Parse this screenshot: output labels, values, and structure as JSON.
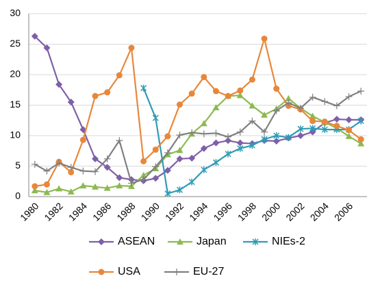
{
  "chart_data": {
    "type": "line",
    "categories": [
      "1980",
      null,
      "1982",
      null,
      "1984",
      null,
      "1986",
      null,
      "1988",
      null,
      "1990",
      null,
      "1992",
      null,
      "1994",
      null,
      "1996",
      null,
      "1998",
      null,
      "2000",
      null,
      "2002",
      null,
      "2004",
      null,
      "2006",
      null
    ],
    "series": [
      {
        "name": "ASEAN",
        "color": "#7f5fa8",
        "marker": "diamond",
        "values": [
          26.3,
          24.4,
          18.4,
          15.5,
          11.0,
          6.2,
          4.8,
          3.1,
          2.8,
          2.6,
          3.0,
          4.3,
          6.2,
          6.3,
          7.9,
          8.8,
          9.2,
          8.8,
          8.7,
          9.2,
          9.1,
          9.6,
          10.0,
          10.6,
          12.1,
          12.7,
          12.6,
          12.6
        ]
      },
      {
        "name": "Japan",
        "color": "#8cba50",
        "marker": "triangle",
        "values": [
          1.0,
          0.7,
          1.3,
          0.8,
          1.8,
          1.6,
          1.4,
          1.8,
          1.7,
          3.5,
          4.6,
          6.9,
          7.6,
          10.3,
          12.0,
          14.6,
          16.5,
          16.6,
          14.9,
          13.4,
          14.4,
          16.1,
          14.5,
          13.2,
          12.2,
          11.2,
          9.9,
          8.7
        ]
      },
      {
        "name": "NIEs-2",
        "color": "#2f9bb5",
        "marker": "star",
        "values": [
          null,
          null,
          null,
          null,
          null,
          null,
          null,
          null,
          null,
          17.8,
          12.9,
          0.5,
          1.1,
          2.4,
          4.4,
          5.6,
          7.0,
          7.9,
          8.4,
          9.4,
          10.0,
          9.7,
          11.1,
          11.2,
          11.0,
          11.0,
          11.0,
          12.4
        ]
      },
      {
        "name": "USA",
        "color": "#e8873a",
        "marker": "circle",
        "values": [
          1.7,
          2.0,
          5.7,
          4.0,
          9.3,
          16.5,
          17.1,
          19.9,
          24.4,
          5.8,
          7.7,
          9.9,
          15.1,
          16.9,
          19.6,
          17.3,
          16.5,
          17.4,
          19.2,
          25.9,
          17.7,
          14.9,
          14.3,
          12.4,
          12.3,
          11.6,
          10.9,
          9.4
        ]
      },
      {
        "name": "EU-27",
        "color": "#7f7f7f",
        "marker": "plus",
        "values": [
          5.3,
          4.2,
          5.5,
          4.8,
          4.2,
          4.1,
          6.2,
          9.2,
          2.2,
          2.8,
          4.9,
          7.2,
          10.1,
          10.5,
          10.3,
          10.4,
          9.8,
          10.6,
          12.4,
          10.6,
          14.1,
          15.4,
          14.5,
          16.3,
          15.6,
          14.9,
          16.4,
          17.3
        ]
      }
    ],
    "ylim": [
      0,
      30
    ],
    "yticks": [
      0,
      5,
      10,
      15,
      20,
      25,
      30
    ],
    "grid": true
  }
}
